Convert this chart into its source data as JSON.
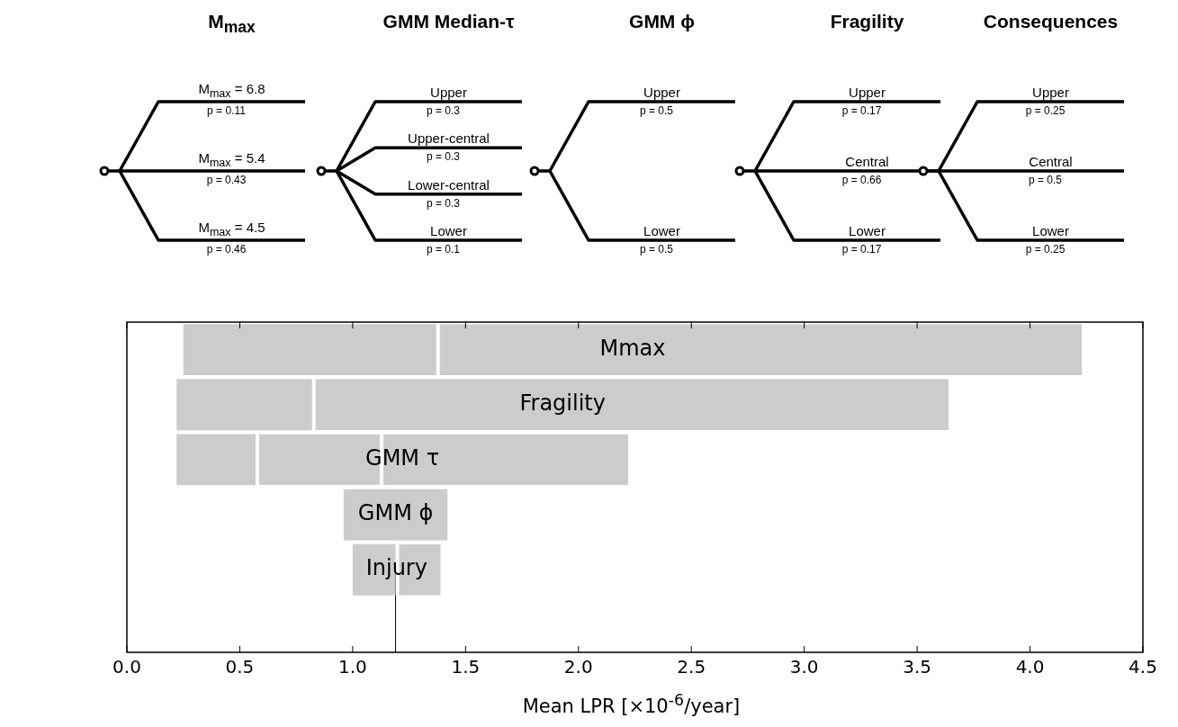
{
  "chart_data": [
    {
      "type": "other",
      "title": "M$_{max}$",
      "annotations": [
        "M$_{max}$ = 6.8",
        "p = 0.11",
        "M$_{max}$ = 5.4",
        "p = 0.43",
        "M$_{max}$ = 4.5",
        "p = 0.46"
      ]
    },
    {
      "type": "other",
      "title": "GMM Median-τ",
      "annotations": [
        "Upper",
        "p = 0.3",
        "Upper-central",
        "p = 0.3",
        "Lower-central",
        "p = 0.3",
        "Lower",
        "p = 0.1"
      ]
    },
    {
      "type": "other",
      "title": "GMM ϕ",
      "annotations": [
        "Upper",
        "p = 0.5",
        "Lower",
        "p = 0.5"
      ]
    },
    {
      "type": "other",
      "title": "Fragility",
      "annotations": [
        "Upper",
        "p = 0.17",
        "Central",
        "p = 0.66",
        "Lower",
        "p = 0.17"
      ]
    },
    {
      "type": "other",
      "title": "Consequences",
      "annotations": [
        "Upper",
        "p = 0.25",
        "Central",
        "p = 0.5",
        "Lower",
        "p = 0.25"
      ]
    },
    {
      "type": "bar",
      "orientation": "horizontal",
      "categories": [
        "Mmax",
        "Fragility",
        "GMM τ",
        "GMM ϕ",
        "Injury",
        null
      ],
      "series": [
        {
          "color": "#cccccc",
          "base": [
            0.25,
            0.22,
            0.22,
            0.96,
            1.0,
            null
          ],
          "values": [
            1.12,
            0.6,
            0.35,
            0.46,
            0.19,
            null
          ]
        },
        {
          "color": "#cccccc",
          "base": [
            1.37,
            0.82,
            0.57,
            null,
            1.19,
            null
          ],
          "values": [
            2.86,
            2.82,
            0.55,
            null,
            0.2,
            null
          ]
        },
        {
          "color": "#cccccc",
          "base": [
            null,
            null,
            1.12,
            null,
            null,
            null
          ],
          "values": [
            null,
            null,
            1.1,
            null,
            null,
            null
          ]
        }
      ],
      "xlabel": "Mean LPR   [×10$^{-6}$/year]",
      "xlim": [
        0,
        4.5
      ],
      "xticks": [
        {
          "value": 0,
          "label": "0.0"
        },
        0.5,
        {
          "value": 1,
          "label": "1.0"
        },
        1.5,
        {
          "value": 2,
          "label": "2.0"
        },
        2.5,
        {
          "value": 3,
          "label": "3.0"
        },
        3.5,
        {
          "value": 4,
          "label": "4.0"
        },
        4.5
      ],
      "ref_lines": [
        {
          "axis": "x",
          "value": 1.19,
          "color": "#000000"
        }
      ],
      "grid": false,
      "legend": false
    }
  ]
}
